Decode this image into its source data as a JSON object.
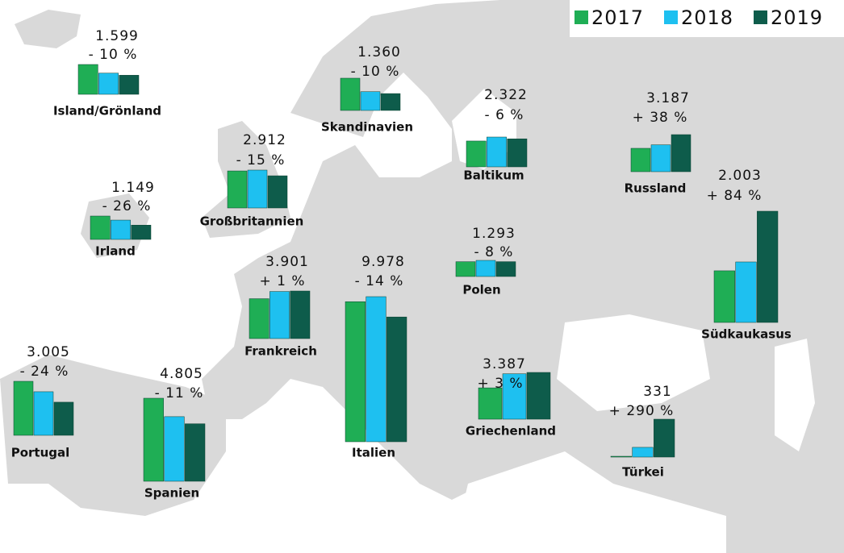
{
  "legend": [
    {
      "name": "2017",
      "color": "#1fae55"
    },
    {
      "name": "2018",
      "color": "#1ec0f0"
    },
    {
      "name": "2019",
      "color": "#0e5c4b"
    }
  ],
  "regions": [
    {
      "name": "Island/Grönland",
      "values": [
        2500,
        1777,
        1599
      ],
      "label": "1.599",
      "change": "- 10 %"
    },
    {
      "name": "Skandinavien",
      "values": [
        2600,
        1511,
        1360
      ],
      "label": "1.360",
      "change": "- 10 %"
    },
    {
      "name": "Baltikum",
      "values": [
        2140,
        2470,
        2322
      ],
      "label": "2.322",
      "change": "- 6 %"
    },
    {
      "name": "Russland",
      "values": [
        2010,
        2309,
        3187
      ],
      "label": "3.187",
      "change": "+ 38 %"
    },
    {
      "name": "Großbritannien",
      "values": [
        3350,
        3426,
        2912
      ],
      "label": "2.912",
      "change": "- 15 %"
    },
    {
      "name": "Irland",
      "values": [
        1880,
        1553,
        1149
      ],
      "label": "1.149",
      "change": "- 26 %"
    },
    {
      "name": "Südkaukasus",
      "values": [
        930,
        1089,
        2003
      ],
      "label": "2.003",
      "change": "+ 84 %"
    },
    {
      "name": "Polen",
      "values": [
        1290,
        1405,
        1293
      ],
      "label": "1.293",
      "change": "- 8 %"
    },
    {
      "name": "Frankreich",
      "values": [
        3270,
        3862,
        3901
      ],
      "label": "3.901",
      "change": "+ 1 %"
    },
    {
      "name": "Italien",
      "values": [
        11200,
        11602,
        9978
      ],
      "label": "9.978",
      "change": "- 14 %"
    },
    {
      "name": "Griechenland",
      "values": [
        2270,
        3288,
        3387
      ],
      "label": "3.387",
      "change": "+ 3 %"
    },
    {
      "name": "Portugal",
      "values": [
        4900,
        3954,
        3005
      ],
      "label": "3.005",
      "change": "- 24 %"
    },
    {
      "name": "Spanien",
      "values": [
        6940,
        5399,
        4805
      ],
      "label": "4.805",
      "change": "- 11 %"
    },
    {
      "name": "Türkei",
      "values": [
        7,
        85,
        331
      ],
      "label": "331",
      "change": "+ 290 %"
    }
  ]
}
